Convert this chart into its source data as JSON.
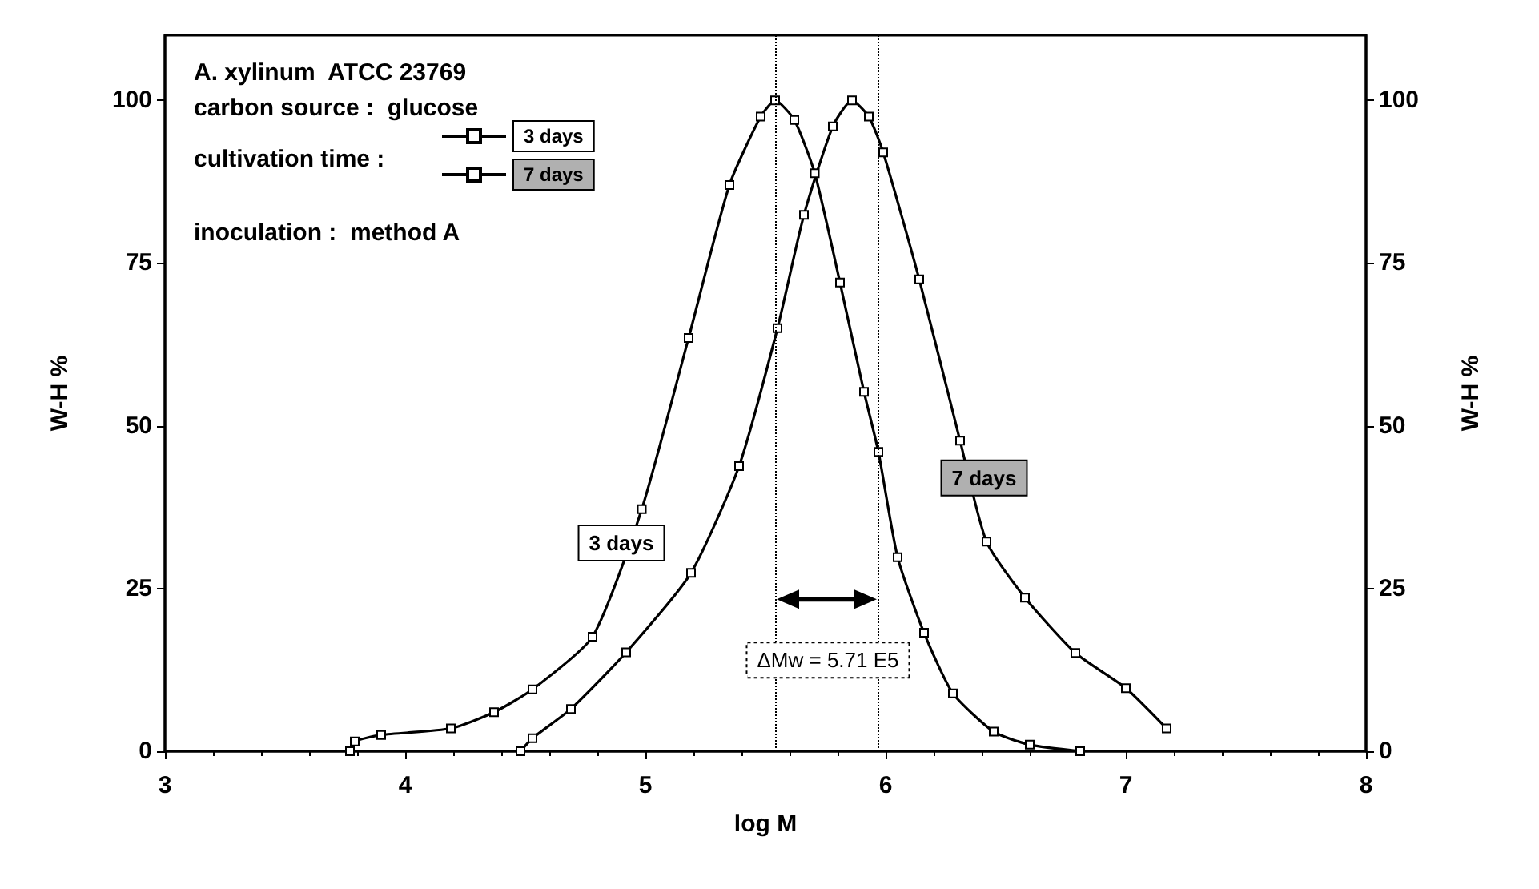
{
  "chart_data": {
    "type": "line",
    "xlabel": "log M",
    "ylabel": "W-H %",
    "y2label": "W-H %",
    "xlim": [
      3,
      8
    ],
    "xticks": [
      3,
      4,
      5,
      6,
      7,
      8
    ],
    "ylim": [
      0,
      110
    ],
    "yticks": [
      0,
      25,
      50,
      75,
      100
    ],
    "y2lim": [
      0,
      110
    ],
    "y2ticks": [
      0,
      25,
      50,
      75,
      100
    ],
    "grid": false,
    "legend": "top left",
    "marker": "square",
    "line_style": "solid",
    "series": [
      {
        "name": "3 days",
        "color": "#000000",
        "x": [
          3.77,
          3.79,
          3.9,
          4.19,
          4.37,
          4.53,
          4.78,
          4.985,
          5.18,
          5.35,
          5.48,
          5.54,
          5.62,
          5.705,
          5.81,
          5.91,
          5.97,
          6.05,
          6.16,
          6.28,
          6.45,
          6.6,
          6.81
        ],
        "values": [
          0,
          1.5,
          2.5,
          3.5,
          6,
          9.5,
          17.6,
          37.2,
          63.5,
          87,
          97.5,
          100,
          97,
          88.8,
          72,
          55.2,
          46,
          29.8,
          18.2,
          8.9,
          3,
          1,
          0
        ]
      },
      {
        "name": "7 days",
        "color": "#000000",
        "x": [
          4.48,
          4.53,
          4.69,
          4.92,
          5.19,
          5.39,
          5.55,
          5.66,
          5.78,
          5.86,
          5.93,
          5.99,
          6.14,
          6.31,
          6.42,
          6.58,
          6.79,
          7.0,
          7.17
        ],
        "values": [
          0,
          2,
          6.5,
          15.2,
          27.4,
          43.8,
          65,
          82.4,
          96,
          100,
          97.5,
          92,
          72.5,
          47.7,
          32.2,
          23.6,
          15.1,
          9.7,
          3.5
        ]
      }
    ],
    "ref_lines": [
      {
        "axis": "x",
        "value": 5.54,
        "line_style": "dotted"
      },
      {
        "axis": "x",
        "value": 5.97,
        "line_style": "dotted"
      }
    ],
    "annotations": [
      "A. xylinum  ATCC 23769",
      "carbon source :  glucose",
      "cultivation time :",
      "inoculation :  method A",
      "3 days",
      "7 days",
      "ΔMw = 5.71 E5"
    ]
  }
}
